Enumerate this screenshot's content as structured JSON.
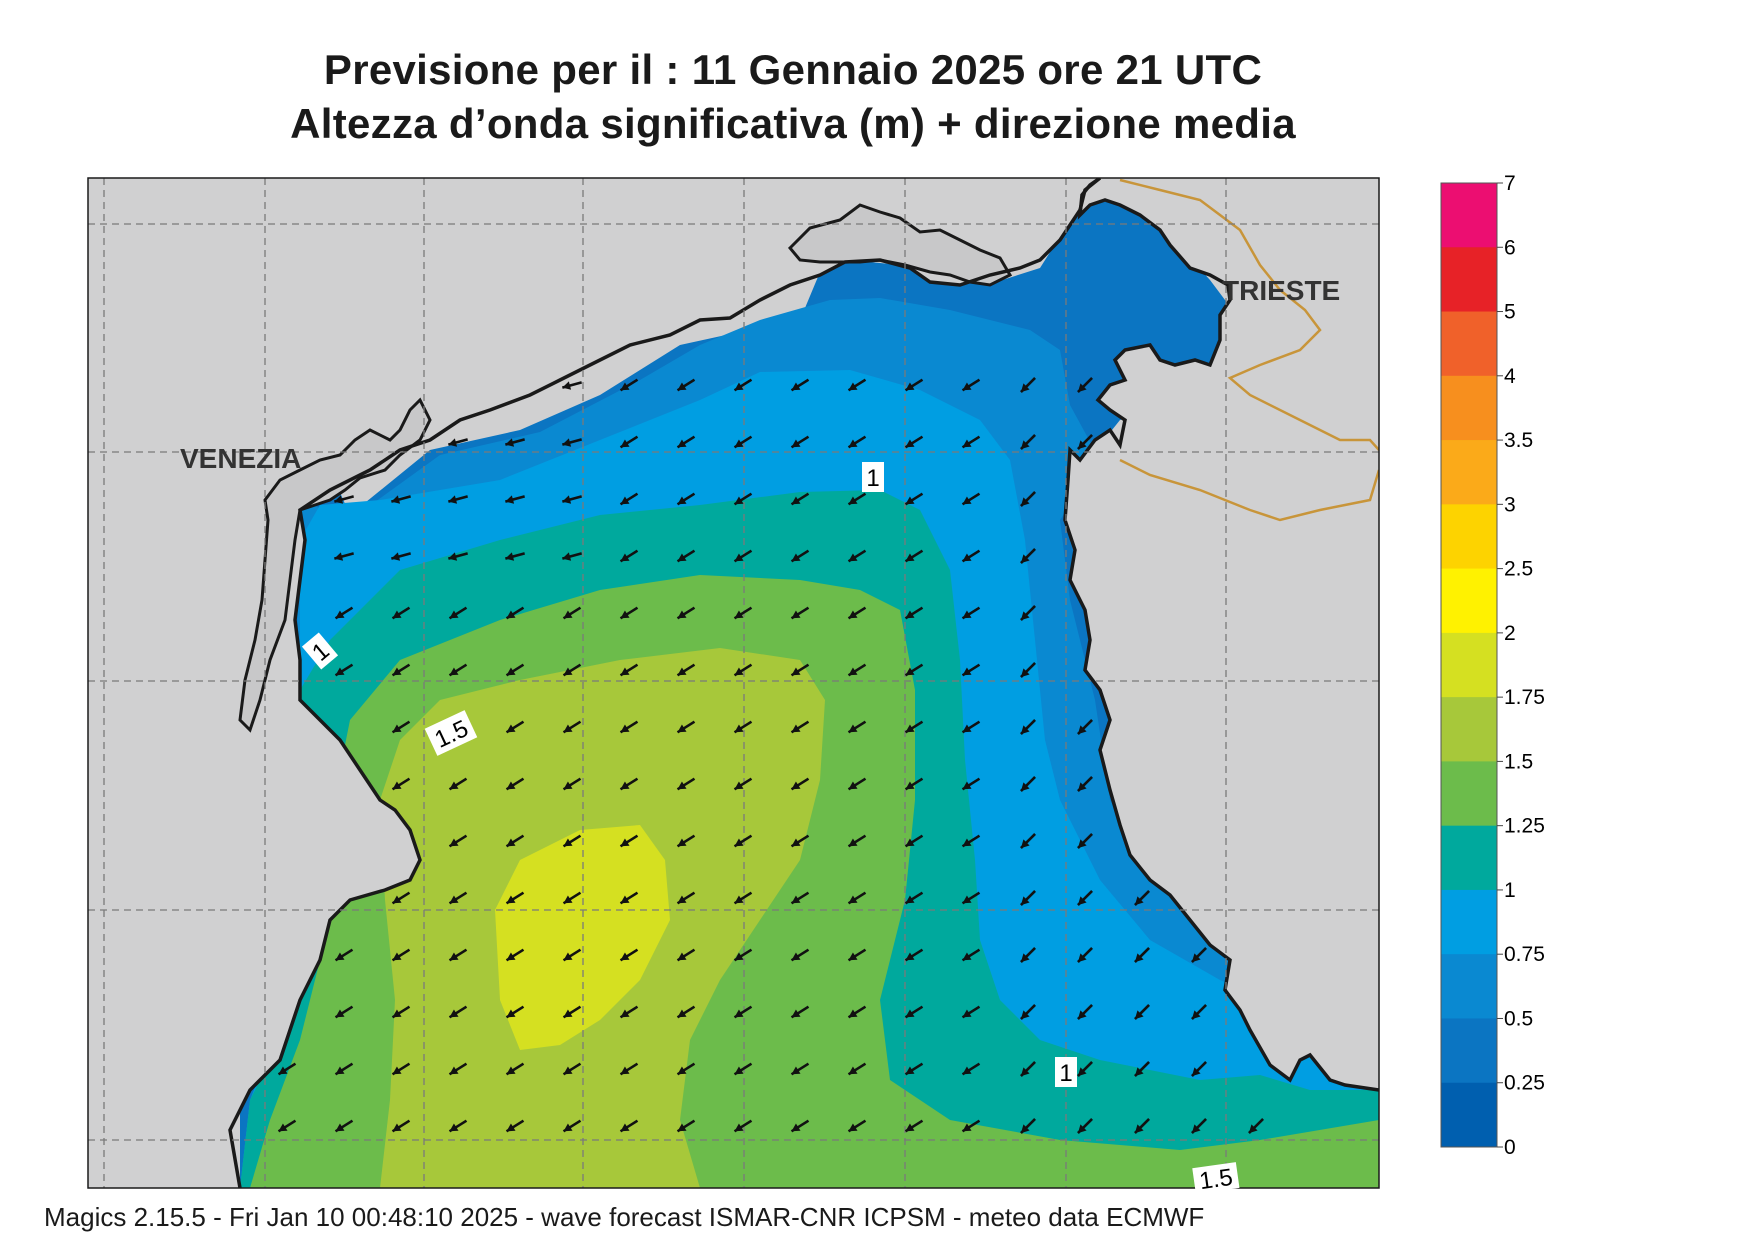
{
  "title": {
    "line1": "Previsione per il  :  11  Gennaio  2025   ore 21 UTC",
    "line2": "Altezza d’onda significativa (m) + direzione media"
  },
  "cities": {
    "venezia": "VENEZIA",
    "trieste": "TRIESTE"
  },
  "contour_labels": [
    "1",
    "1",
    "1.5",
    "1",
    "1.5"
  ],
  "colorbar": {
    "tick_labels": [
      "7",
      "6",
      "5",
      "4",
      "3.5",
      "3",
      "2.5",
      "2",
      "1.75",
      "1.5",
      "1.25",
      "1",
      "0.75",
      "0.5",
      "0.25",
      "0"
    ],
    "colors": [
      "#ec0e71",
      "#e72227",
      "#f0612a",
      "#f78f1e",
      "#fbaa19",
      "#fdd300",
      "#fff200",
      "#d5e021",
      "#a7c83a",
      "#6cbc4b",
      "#00a99d",
      "#009ee2",
      "#0a89d1",
      "#0b75c2",
      "#005faf"
    ]
  },
  "map": {
    "land_color": "#d0d0d1",
    "graticule": "dashed",
    "arrow_direction": "towards-southwest"
  },
  "footer": "Magics 2.15.5 - Fri Jan 10 00:48:10 2025 - wave forecast  ISMAR-CNR  ICPSM - meteo data    ECMWF"
}
